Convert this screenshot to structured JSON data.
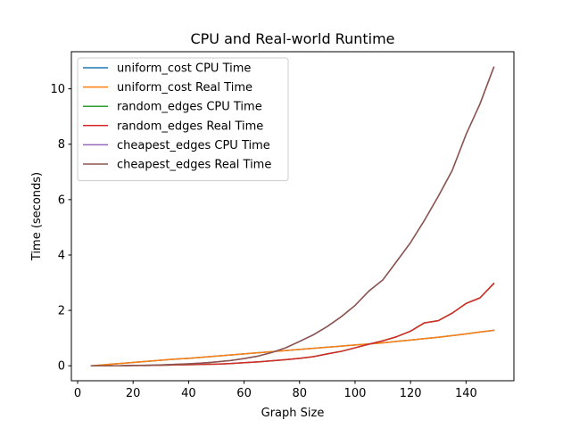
{
  "chart_data": {
    "type": "line",
    "title": "CPU and Real-world Runtime",
    "xlabel": "Graph Size",
    "ylabel": "Time (seconds)",
    "xlim": [
      -2.25,
      157.25
    ],
    "ylim": [
      -0.54,
      11.34
    ],
    "xticks": [
      0,
      20,
      40,
      60,
      80,
      100,
      120,
      140
    ],
    "yticks": [
      0,
      2,
      4,
      6,
      8,
      10
    ],
    "grid": false,
    "legend_position": "top-left",
    "x": [
      5,
      10,
      15,
      20,
      25,
      30,
      35,
      40,
      45,
      50,
      55,
      60,
      65,
      70,
      75,
      80,
      85,
      90,
      95,
      100,
      105,
      110,
      115,
      120,
      125,
      130,
      135,
      140,
      145,
      150
    ],
    "series": [
      {
        "name": "uniform_cost CPU Time",
        "color": "#1f77b4",
        "values": [
          0.0,
          0.04,
          0.08,
          0.12,
          0.16,
          0.2,
          0.24,
          0.27,
          0.31,
          0.35,
          0.39,
          0.43,
          0.47,
          0.51,
          0.55,
          0.59,
          0.63,
          0.67,
          0.71,
          0.75,
          0.79,
          0.83,
          0.88,
          0.93,
          0.98,
          1.03,
          1.09,
          1.15,
          1.22,
          1.28
        ]
      },
      {
        "name": "uniform_cost Real Time",
        "color": "#ff7f0e",
        "values": [
          0.0,
          0.04,
          0.08,
          0.12,
          0.16,
          0.2,
          0.24,
          0.27,
          0.31,
          0.35,
          0.39,
          0.43,
          0.47,
          0.51,
          0.55,
          0.59,
          0.63,
          0.67,
          0.71,
          0.75,
          0.79,
          0.83,
          0.88,
          0.93,
          0.98,
          1.03,
          1.09,
          1.15,
          1.22,
          1.28
        ]
      },
      {
        "name": "random_edges CPU Time",
        "color": "#2ca02c",
        "values": [
          0.0,
          0.0,
          0.0,
          0.01,
          0.01,
          0.02,
          0.03,
          0.04,
          0.05,
          0.06,
          0.08,
          0.11,
          0.14,
          0.18,
          0.22,
          0.27,
          0.33,
          0.43,
          0.52,
          0.65,
          0.78,
          0.9,
          1.05,
          1.25,
          1.55,
          1.63,
          1.9,
          2.25,
          2.45,
          2.97
        ]
      },
      {
        "name": "random_edges Real Time",
        "color": "#d62728",
        "values": [
          0.0,
          0.0,
          0.0,
          0.01,
          0.01,
          0.02,
          0.03,
          0.04,
          0.05,
          0.06,
          0.08,
          0.11,
          0.14,
          0.18,
          0.22,
          0.27,
          0.33,
          0.43,
          0.52,
          0.65,
          0.78,
          0.9,
          1.05,
          1.25,
          1.55,
          1.63,
          1.9,
          2.25,
          2.45,
          2.97
        ]
      },
      {
        "name": "cheapest_edges CPU Time",
        "color": "#9467bd",
        "values": [
          0.0,
          0.0,
          0.0,
          0.01,
          0.02,
          0.03,
          0.05,
          0.07,
          0.1,
          0.14,
          0.19,
          0.26,
          0.35,
          0.48,
          0.65,
          0.88,
          1.12,
          1.42,
          1.77,
          2.18,
          2.7,
          3.1,
          3.77,
          4.45,
          5.25,
          6.12,
          7.05,
          8.35,
          9.45,
          10.78
        ]
      },
      {
        "name": "cheapest_edges Real Time",
        "color": "#8c564b",
        "values": [
          0.0,
          0.0,
          0.0,
          0.01,
          0.02,
          0.03,
          0.05,
          0.07,
          0.1,
          0.14,
          0.19,
          0.26,
          0.35,
          0.48,
          0.65,
          0.88,
          1.12,
          1.42,
          1.77,
          2.18,
          2.7,
          3.1,
          3.77,
          4.45,
          5.25,
          6.12,
          7.05,
          8.35,
          9.45,
          10.78
        ]
      }
    ]
  }
}
